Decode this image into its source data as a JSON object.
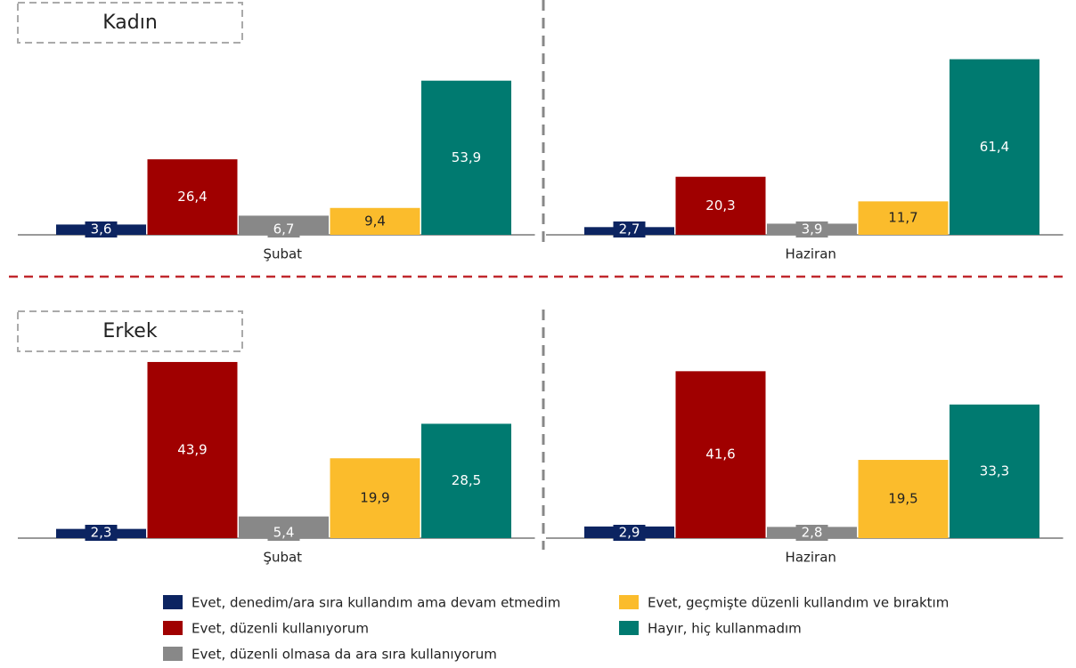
{
  "chart_data": {
    "type": "bar",
    "categories": [
      "Şubat",
      "Haziran"
    ],
    "panels": [
      {
        "title": "Kadın",
        "ylim": [
          0,
          65
        ]
      },
      {
        "title": "Erkek",
        "ylim": [
          0,
          45
        ]
      }
    ],
    "series": [
      {
        "name": "Evet, denedim/ara sıra kullandım ama devam etmedim",
        "color": "#0c2461",
        "values": [
          [
            3.6,
            2.7
          ],
          [
            2.3,
            2.9
          ]
        ],
        "value_labels": [
          [
            "3,6",
            "2,7"
          ],
          [
            "2,3",
            "2,9"
          ]
        ]
      },
      {
        "name": "Evet, düzenli kullanıyorum",
        "color": "#a00000",
        "values": [
          [
            26.4,
            20.3
          ],
          [
            43.9,
            41.6
          ]
        ],
        "value_labels": [
          [
            "26,4",
            "20,3"
          ],
          [
            "43,9",
            "41,6"
          ]
        ]
      },
      {
        "name": "Evet, düzenli olmasa da ara sıra kullanıyorum",
        "color": "#888888",
        "values": [
          [
            6.7,
            3.9
          ],
          [
            5.4,
            2.8
          ]
        ],
        "value_labels": [
          [
            "6,7",
            "3,9"
          ],
          [
            "5,4",
            "2,8"
          ]
        ]
      },
      {
        "name": "Evet, geçmişte düzenli kullandım ve bıraktım",
        "color": "#fbbc2c",
        "values": [
          [
            9.4,
            11.7
          ],
          [
            19.9,
            19.5
          ]
        ],
        "value_labels": [
          [
            "9,4",
            "11,7"
          ],
          [
            "19,9",
            "19,5"
          ]
        ]
      },
      {
        "name": "Hayır, hiç kullanmadım",
        "color": "#007a70",
        "values": [
          [
            53.9,
            61.4
          ],
          [
            28.5,
            33.3
          ]
        ],
        "value_labels": [
          [
            "53,9",
            "61,4"
          ],
          [
            "28,5",
            "33,3"
          ]
        ]
      }
    ]
  }
}
